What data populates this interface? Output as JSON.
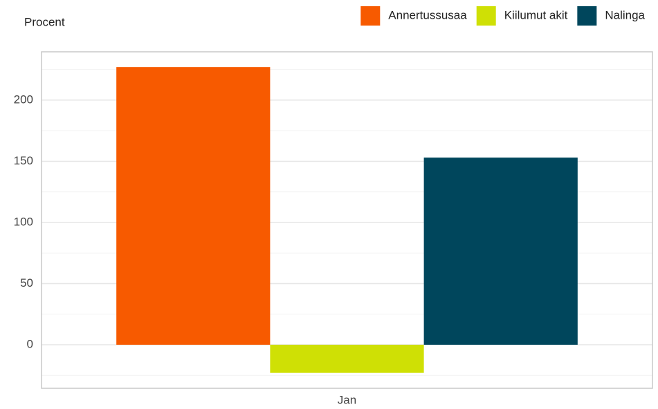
{
  "chart_data": {
    "type": "bar",
    "y_label": "Procent",
    "categories": [
      "Jan"
    ],
    "series": [
      {
        "name": "Annertussusaa",
        "color": "#f75a00",
        "values": [
          227
        ]
      },
      {
        "name": "Kiilumut akit",
        "color": "#cfe005",
        "values": [
          -23
        ]
      },
      {
        "name": "Nalinga",
        "color": "#00465c",
        "values": [
          153
        ]
      }
    ],
    "ylim": [
      -35.6,
      239.5
    ],
    "yticks": [
      0,
      50,
      100,
      150,
      200
    ],
    "grid": true,
    "legend": "top-right"
  }
}
